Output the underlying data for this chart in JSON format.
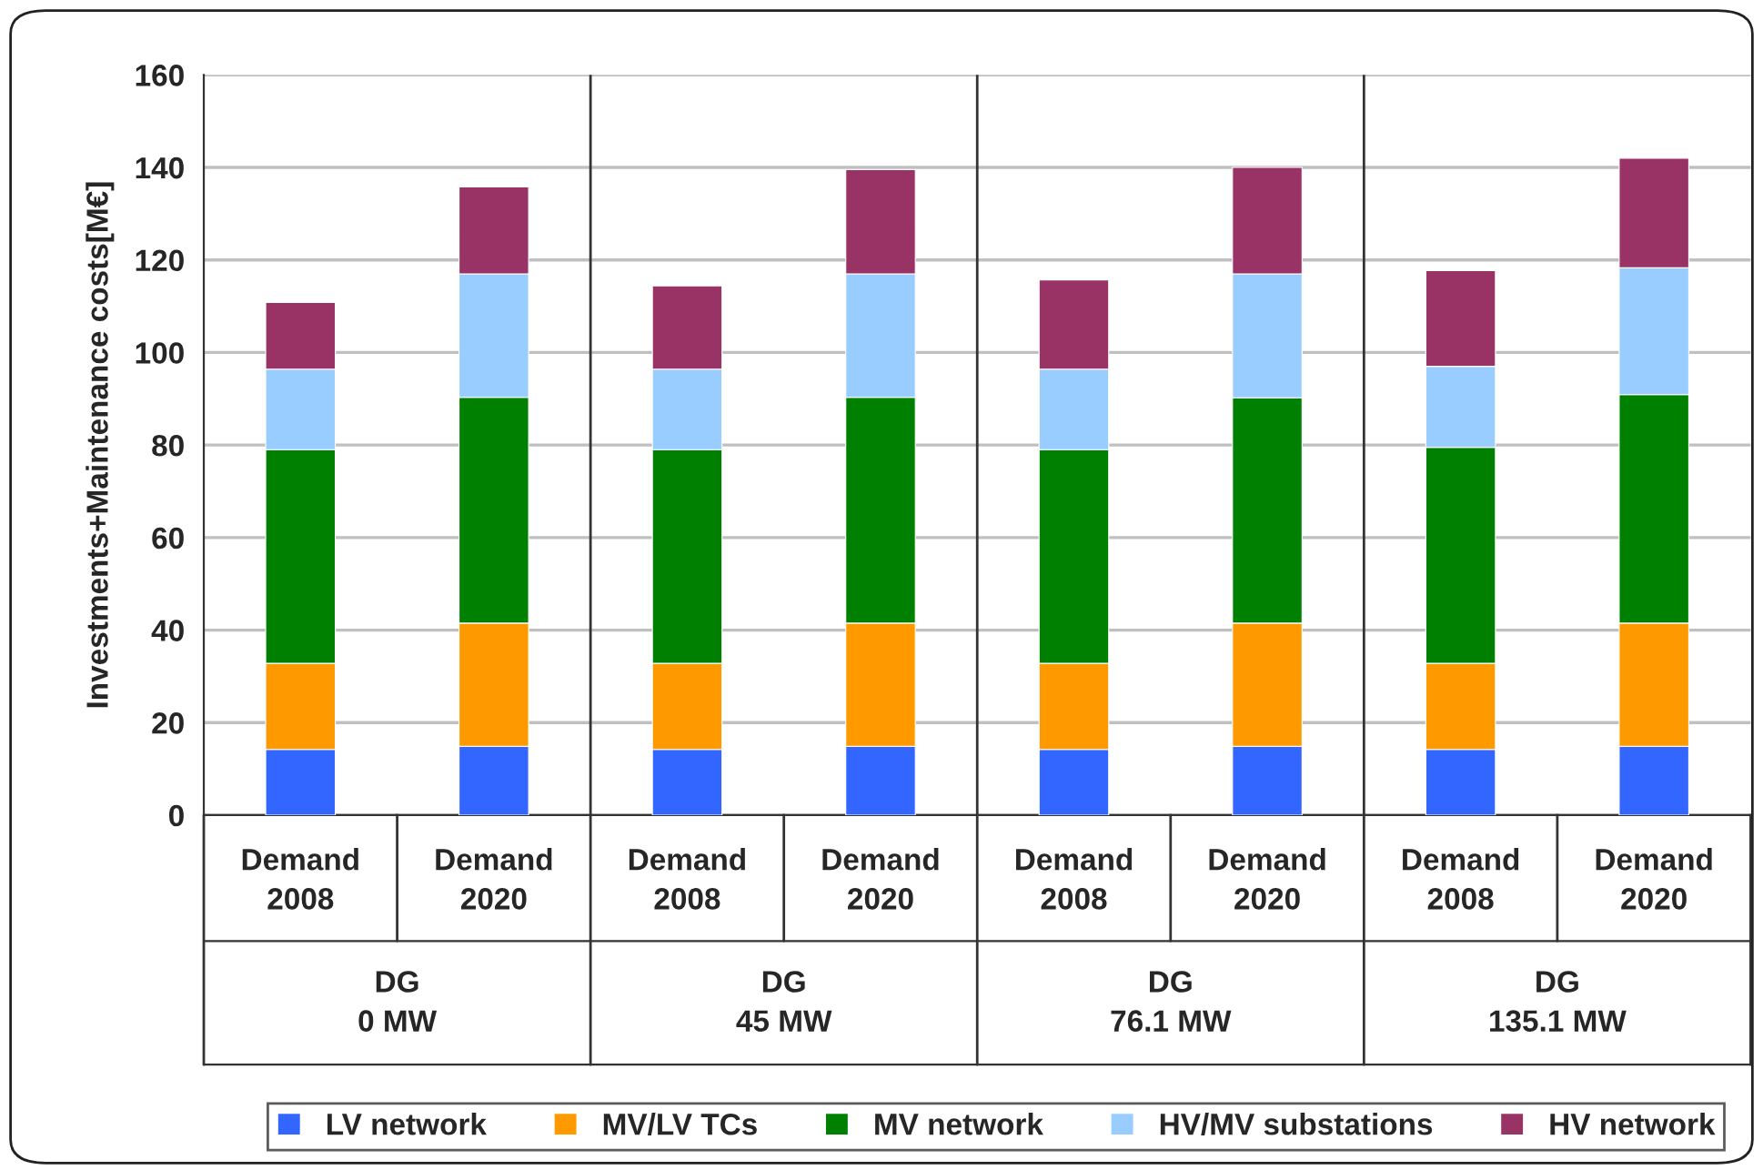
{
  "chart_data": {
    "type": "bar",
    "stacked": true,
    "ylabel": "Investments+Maintenance costs[M€]",
    "categories": [
      "Demand\n2008",
      "Demand\n2020",
      "Demand\n2008",
      "Demand\n2020",
      "Demand\n2008",
      "Demand\n2020",
      "Demand\n2008",
      "Demand\n2020"
    ],
    "annotations": [
      "DG\n0 MW",
      "DG\n45 MW",
      "DG\n76.1 MW",
      "DG\n135.1 MW"
    ],
    "series": [
      {
        "name": "LV network",
        "color": "#3366ff",
        "values": [
          14.2,
          14.9,
          14.2,
          14.9,
          14.2,
          14.9,
          14.2,
          14.9
        ]
      },
      {
        "name": "MV/LV TCs",
        "color": "#ff9900",
        "values": [
          18.6,
          26.6,
          18.6,
          26.6,
          18.6,
          26.6,
          18.6,
          26.6
        ]
      },
      {
        "name": "MV network",
        "color": "#008000",
        "values": [
          46.2,
          48.8,
          46.2,
          48.8,
          46.2,
          48.7,
          46.7,
          49.4
        ]
      },
      {
        "name": "HV/MV substations",
        "color": "#99ccff",
        "values": [
          17.4,
          26.7,
          17.4,
          26.7,
          17.4,
          26.8,
          17.5,
          27.4
        ]
      },
      {
        "name": "HV network",
        "color": "#993366",
        "values": [
          14.4,
          18.8,
          18.0,
          22.5,
          19.3,
          23.0,
          20.7,
          23.7
        ]
      }
    ],
    "ylim": [
      0,
      160
    ],
    "yticks": [
      0,
      20,
      40,
      60,
      80,
      100,
      120,
      140,
      160
    ],
    "grid": "y",
    "legend": "bottom"
  }
}
